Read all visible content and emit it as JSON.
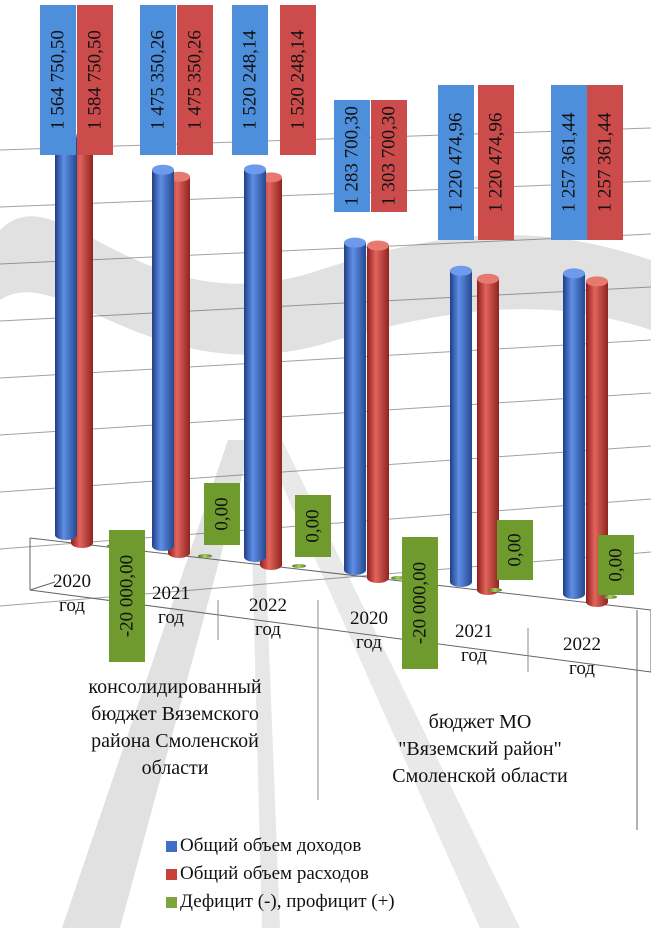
{
  "chart_data": {
    "type": "bar",
    "groups": [
      {
        "label": "консолидированный бюджет Вяземского района Смоленской области",
        "categories": [
          "2020 год",
          "2021 год",
          "2022 год"
        ]
      },
      {
        "label": "бюджет МО \"Вяземский район\" Смоленской области",
        "categories": [
          "2020 год",
          "2021 год",
          "2022 год"
        ]
      }
    ],
    "series": [
      {
        "name": "Общий объем доходов",
        "color": "#3f6fc7",
        "values": [
          1564750.5,
          1475350.26,
          1520248.14,
          1283700.3,
          1220474.96,
          1257361.44
        ],
        "labels": [
          "1 564 750,50",
          "1 475 350,26",
          "1 520 248,14",
          "1 283 700,30",
          "1 220 474,96",
          "1 257 361,44"
        ]
      },
      {
        "name": "Общий объем расходов",
        "color": "#c9403a",
        "values": [
          1584750.5,
          1475350.26,
          1520248.14,
          1303700.3,
          1220474.96,
          1257361.44
        ],
        "labels": [
          "1 584 750,50",
          "1 475 350,26",
          "1 520 248,14",
          "1 303 700,30",
          "1 220 474,96",
          "1 257 361,44"
        ]
      },
      {
        "name": "Дефицит (-), профицит (+)",
        "color": "#7fa43a",
        "values": [
          -20000.0,
          0.0,
          0.0,
          -20000.0,
          0.0,
          0.0
        ],
        "labels": [
          "-20 000,00",
          "0,00",
          "0,00",
          "-20 000,00",
          "0,00",
          "0,00"
        ]
      }
    ],
    "legend_position": "bottom",
    "chart_style": "3d-cylinder",
    "grid": true,
    "label_colors": {
      "income": "#4d8fdb",
      "expense": "#cc4b4b",
      "deficit": "#6f9a2e"
    }
  }
}
